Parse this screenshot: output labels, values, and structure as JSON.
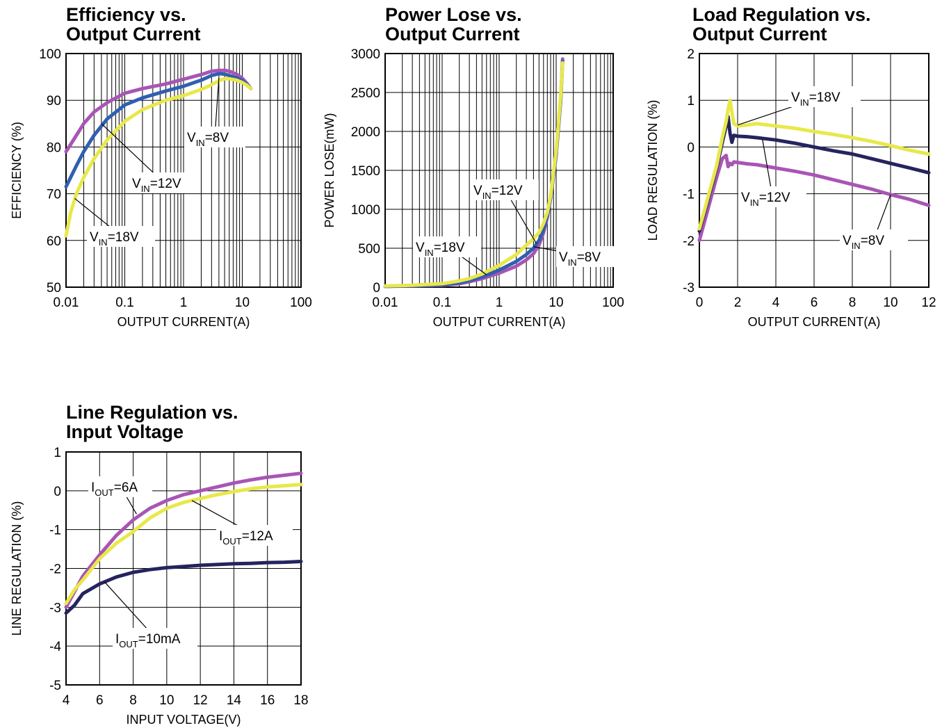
{
  "colors": {
    "vin8": "#a855b5",
    "vin12": "#2f5fb0",
    "vin18": "#e8e84a",
    "dark_navy": "#25245e",
    "grid": "#000000"
  },
  "chart_data": [
    {
      "id": "efficiency",
      "type": "line",
      "title_lines": [
        "Efficiency vs.",
        "Output Current"
      ],
      "xlabel": "OUTPUT CURRENT(A)",
      "ylabel": "EFFICIENCY (%)",
      "xscale": "log",
      "xlim": [
        0.01,
        100
      ],
      "ylim": [
        50,
        100
      ],
      "xticks": [
        0.01,
        0.1,
        1,
        10,
        100
      ],
      "xtick_labels": [
        "0.01",
        "0.1",
        "1",
        "10",
        "100"
      ],
      "yticks": [
        50,
        60,
        70,
        80,
        90,
        100
      ],
      "ytick_labels": [
        "50",
        "60",
        "70",
        "80",
        "90",
        "100"
      ],
      "grid": true,
      "series": [
        {
          "name": "VIN=8V",
          "color": "#a855b5",
          "x": [
            0.01,
            0.015,
            0.02,
            0.03,
            0.05,
            0.1,
            0.2,
            0.5,
            1,
            2,
            3,
            4,
            5,
            6,
            8,
            10,
            12,
            14
          ],
          "y": [
            79,
            82.5,
            85,
            87.5,
            89.5,
            91.5,
            92.5,
            93.5,
            94.5,
            95.5,
            96.2,
            96.4,
            96.4,
            96.2,
            95.6,
            94.7,
            93.6,
            92.5
          ]
        },
        {
          "name": "VIN=12V",
          "color": "#2f5fb0",
          "x": [
            0.01,
            0.015,
            0.02,
            0.03,
            0.05,
            0.1,
            0.2,
            0.5,
            1,
            2,
            3,
            4,
            5,
            6,
            8,
            10,
            12,
            14
          ],
          "y": [
            71.5,
            76,
            79,
            82.5,
            86,
            89,
            90.5,
            92,
            93,
            94.3,
            95.3,
            95.7,
            95.6,
            95.3,
            94.8,
            94.2,
            93.4,
            92.5
          ]
        },
        {
          "name": "VIN=18V",
          "color": "#e8e84a",
          "x": [
            0.01,
            0.012,
            0.015,
            0.02,
            0.03,
            0.05,
            0.1,
            0.2,
            0.5,
            1,
            2,
            3,
            4,
            5,
            6,
            8,
            10,
            12,
            14
          ],
          "y": [
            61,
            66,
            70,
            73.5,
            77.5,
            81.5,
            85.5,
            88,
            90,
            91,
            92.3,
            93.3,
            94.2,
            94.6,
            94.6,
            94.3,
            93.8,
            93.2,
            92.5
          ]
        }
      ],
      "annotations": [
        {
          "base": "V",
          "sub": "IN",
          "rest": "=8V"
        },
        {
          "base": "V",
          "sub": "IN",
          "rest": "=12V"
        },
        {
          "base": "V",
          "sub": "IN",
          "rest": "=18V"
        }
      ]
    },
    {
      "id": "power_lose",
      "type": "line",
      "title_lines": [
        "Power Lose vs.",
        "Output Current"
      ],
      "xlabel": "OUTPUT CURRENT(A)",
      "ylabel": "POWER LOSE(mW)",
      "xscale": "log",
      "xlim": [
        0.01,
        100
      ],
      "ylim": [
        0,
        3000
      ],
      "xticks": [
        0.01,
        0.1,
        1,
        10,
        100
      ],
      "xtick_labels": [
        "0.01",
        "0.1",
        "1",
        "10",
        "100"
      ],
      "yticks": [
        0,
        500,
        1000,
        1500,
        2000,
        2500,
        3000
      ],
      "ytick_labels": [
        "0",
        "500",
        "1000",
        "1500",
        "2000",
        "2500",
        "3000"
      ],
      "grid": true,
      "series": [
        {
          "name": "VIN=8V",
          "color": "#a855b5",
          "x": [
            0.01,
            0.03,
            0.1,
            0.2,
            0.3,
            0.5,
            1,
            2,
            3,
            4,
            5,
            6,
            7,
            8,
            10,
            12,
            13
          ],
          "y": [
            10,
            15,
            25,
            45,
            70,
            110,
            180,
            270,
            350,
            430,
            540,
            700,
            900,
            1150,
            1700,
            2400,
            2930
          ]
        },
        {
          "name": "VIN=12V",
          "color": "#2f5fb0",
          "x": [
            0.01,
            0.03,
            0.1,
            0.2,
            0.3,
            0.5,
            1,
            2,
            3,
            4,
            5,
            6,
            7,
            8,
            10,
            12,
            13
          ],
          "y": [
            12,
            18,
            30,
            55,
            85,
            130,
            220,
            330,
            420,
            500,
            600,
            740,
            920,
            1150,
            1700,
            2400,
            2900
          ]
        },
        {
          "name": "VIN=18V",
          "color": "#e8e84a",
          "x": [
            0.01,
            0.03,
            0.1,
            0.2,
            0.3,
            0.5,
            1,
            2,
            3,
            4,
            5,
            6,
            7,
            8,
            10,
            12,
            13
          ],
          "y": [
            15,
            25,
            45,
            80,
            110,
            170,
            280,
            420,
            540,
            620,
            700,
            820,
            960,
            1180,
            1750,
            2450,
            2880
          ]
        }
      ],
      "annotations": [
        {
          "base": "V",
          "sub": "IN",
          "rest": "=12V"
        },
        {
          "base": "V",
          "sub": "IN",
          "rest": "=18V"
        },
        {
          "base": "V",
          "sub": "IN",
          "rest": "=8V"
        }
      ]
    },
    {
      "id": "load_regulation",
      "type": "line",
      "title_lines": [
        "Load Regulation vs.",
        "Output Current"
      ],
      "xlabel": "OUTPUT CURRENT(A)",
      "ylabel": "LOAD REGULATION (%)",
      "xscale": "linear",
      "xlim": [
        0,
        12
      ],
      "ylim": [
        -3,
        2
      ],
      "xticks": [
        0,
        2,
        4,
        6,
        8,
        10,
        12
      ],
      "xtick_labels": [
        "0",
        "2",
        "4",
        "6",
        "8",
        "10",
        "12"
      ],
      "yticks": [
        -3,
        -2,
        -1,
        0,
        1,
        2
      ],
      "ytick_labels": [
        "-3",
        "-2",
        "-1",
        "0",
        "1",
        "2"
      ],
      "grid": true,
      "series": [
        {
          "name": "VIN=8V",
          "color": "#a855b5",
          "x": [
            0,
            0.3,
            0.6,
            0.9,
            1.2,
            1.4,
            1.5,
            1.6,
            1.7,
            1.8,
            2,
            2.5,
            3,
            4,
            5,
            6,
            7,
            8,
            9,
            10,
            11,
            12
          ],
          "y": [
            -2,
            -1.55,
            -1.1,
            -0.65,
            -0.25,
            -0.18,
            -0.42,
            -0.35,
            -0.38,
            -0.32,
            -0.33,
            -0.36,
            -0.38,
            -0.45,
            -0.52,
            -0.6,
            -0.7,
            -0.8,
            -0.9,
            -1.02,
            -1.12,
            -1.25
          ]
        },
        {
          "name": "VIN=12V",
          "color": "#25245e",
          "x": [
            0,
            0.3,
            0.6,
            0.9,
            1.2,
            1.4,
            1.5,
            1.6,
            1.7,
            1.8,
            2,
            2.5,
            3,
            4,
            5,
            6,
            7,
            8,
            9,
            10,
            11,
            12
          ],
          "y": [
            -1.8,
            -1.35,
            -0.9,
            -0.45,
            0.1,
            0.45,
            0.65,
            0.3,
            0.1,
            0.25,
            0.23,
            0.22,
            0.2,
            0.15,
            0.08,
            0.0,
            -0.08,
            -0.15,
            -0.25,
            -0.35,
            -0.45,
            -0.55
          ]
        },
        {
          "name": "VIN=18V",
          "color": "#e8e84a",
          "x": [
            0,
            0.3,
            0.6,
            0.9,
            1.2,
            1.4,
            1.5,
            1.6,
            1.7,
            1.8,
            2,
            2.5,
            3,
            4,
            5,
            6,
            7,
            8,
            9,
            10,
            11,
            12
          ],
          "y": [
            -1.75,
            -1.3,
            -0.85,
            -0.4,
            0.2,
            0.55,
            0.8,
            1.0,
            0.75,
            0.5,
            0.45,
            0.47,
            0.5,
            0.45,
            0.4,
            0.33,
            0.27,
            0.2,
            0.12,
            0.03,
            -0.07,
            -0.15
          ]
        }
      ],
      "annotations": [
        {
          "base": "V",
          "sub": "IN",
          "rest": "=18V"
        },
        {
          "base": "V",
          "sub": "IN",
          "rest": "=12V"
        },
        {
          "base": "V",
          "sub": "IN",
          "rest": "=8V"
        }
      ]
    },
    {
      "id": "line_regulation",
      "type": "line",
      "title_lines": [
        "Line Regulation vs.",
        "Input Voltage"
      ],
      "xlabel": "INPUT VOLTAGE(V)",
      "ylabel": "LINE REGULATION (%)",
      "xscale": "linear",
      "xlim": [
        4,
        18
      ],
      "ylim": [
        -5,
        1
      ],
      "xticks": [
        4,
        6,
        8,
        10,
        12,
        14,
        16,
        18
      ],
      "xtick_labels": [
        "4",
        "6",
        "8",
        "10",
        "12",
        "14",
        "16",
        "18"
      ],
      "yticks": [
        -5,
        -4,
        -3,
        -2,
        -1,
        0,
        1
      ],
      "ytick_labels": [
        "-5",
        "-4",
        "-3",
        "-2",
        "-1",
        "0",
        "1"
      ],
      "grid": true,
      "series": [
        {
          "name": "IOUT=6A",
          "color": "#a855b5",
          "x": [
            4,
            4.5,
            5,
            6,
            7,
            8,
            9,
            10,
            11,
            12,
            13,
            14,
            15,
            16,
            17,
            18
          ],
          "y": [
            -3.0,
            -2.6,
            -2.2,
            -1.65,
            -1.15,
            -0.75,
            -0.45,
            -0.25,
            -0.1,
            0.0,
            0.1,
            0.2,
            0.28,
            0.35,
            0.4,
            0.45
          ]
        },
        {
          "name": "IOUT=12A",
          "color": "#e8e84a",
          "x": [
            4,
            4.5,
            5,
            6,
            7,
            8,
            9,
            10,
            11,
            12,
            13,
            14,
            15,
            16,
            17,
            18
          ],
          "y": [
            -2.9,
            -2.55,
            -2.3,
            -1.75,
            -1.35,
            -1.05,
            -0.7,
            -0.45,
            -0.3,
            -0.2,
            -0.1,
            -0.02,
            0.05,
            0.1,
            0.13,
            0.16
          ]
        },
        {
          "name": "IOUT=10mA",
          "color": "#25245e",
          "x": [
            4,
            4.5,
            5,
            6,
            7,
            8,
            9,
            10,
            11,
            12,
            13,
            14,
            15,
            16,
            17,
            18
          ],
          "y": [
            -3.15,
            -2.95,
            -2.65,
            -2.4,
            -2.22,
            -2.1,
            -2.03,
            -1.98,
            -1.95,
            -1.92,
            -1.9,
            -1.88,
            -1.87,
            -1.85,
            -1.84,
            -1.82
          ]
        }
      ],
      "annotations": [
        {
          "base": "I",
          "sub": "OUT",
          "rest": "=6A"
        },
        {
          "base": "I",
          "sub": "OUT",
          "rest": "=12A"
        },
        {
          "base": "I",
          "sub": "OUT",
          "rest": "=10mA"
        }
      ]
    }
  ]
}
